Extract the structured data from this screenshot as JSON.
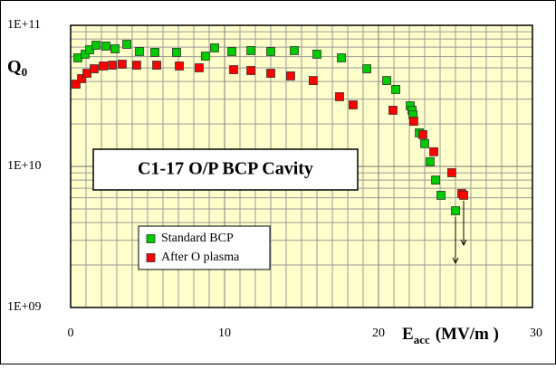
{
  "chart_data": {
    "type": "scatter",
    "title": "C1-17 O/P  BCP Cavity",
    "ylabel": "Q",
    "ylabel_sub": "0",
    "xlabel": "E",
    "xlabel_sub": "acc",
    "xlabel_unit": "(MV/m )",
    "log_y": true,
    "grid": true,
    "legend": "lower-left",
    "xlim": [
      0,
      30
    ],
    "xticks": [
      0,
      10,
      20,
      30
    ],
    "xminorticks": [
      1,
      2,
      3,
      4,
      5,
      6,
      7,
      8,
      9,
      11,
      12,
      13,
      14,
      15,
      16,
      17,
      18,
      19,
      21,
      22,
      23,
      24,
      25,
      26,
      27,
      28,
      29
    ],
    "ylim": [
      1000000000.0,
      100000000000.0
    ],
    "yticks": [
      {
        "value": 1000000000.0,
        "label": "1E+09"
      },
      {
        "value": 10000000000.0,
        "label": "1E+10"
      },
      {
        "value": 100000000000.0,
        "label": "1E+11"
      }
    ],
    "yminorticks": [
      2000000000.0,
      3000000000.0,
      4000000000.0,
      5000000000.0,
      6000000000.0,
      7000000000.0,
      8000000000.0,
      9000000000.0,
      20000000000.0,
      30000000000.0,
      40000000000.0,
      50000000000.0,
      60000000000.0,
      70000000000.0,
      80000000000.0,
      90000000000.0
    ],
    "series": [
      {
        "name": "Standard BCP",
        "color": "#00cc00",
        "x": [
          0.47,
          0.94,
          1.24,
          1.65,
          2.29,
          2.88,
          3.65,
          4.47,
          5.47,
          6.88,
          8.76,
          9.35,
          10.47,
          11.71,
          13.0,
          14.53,
          16.0,
          17.59,
          19.24,
          20.53,
          21.12,
          22.06,
          22.18,
          22.24,
          22.65,
          23.0,
          23.35,
          23.71,
          24.06,
          25.0
        ],
        "values": [
          58800000000.0,
          62400000000.0,
          67100000000.0,
          72300000000.0,
          71300000000.0,
          68100000000.0,
          73300000000.0,
          65200000000.0,
          64300000000.0,
          64300000000.0,
          60500000000.0,
          69200000000.0,
          65200000000.0,
          66200000000.0,
          65200000000.0,
          66200000000.0,
          62400000000.0,
          58800000000.0,
          49200000000.0,
          40600000000.0,
          35100000000.0,
          26900000000.0,
          25000000000.0,
          23200000000.0,
          17300000000.0,
          14500000000.0,
          10800000000.0,
          8000000000.0,
          6240000000.0,
          4850000000.0
        ]
      },
      {
        "name": "After O plasma",
        "color": "#ff0000",
        "x": [
          0.35,
          0.71,
          1.06,
          1.53,
          2.12,
          2.71,
          3.35,
          4.29,
          5.59,
          7.06,
          8.35,
          10.59,
          11.71,
          13.0,
          14.29,
          15.76,
          17.47,
          18.35,
          20.94,
          22.29,
          22.88,
          23.59,
          24.76,
          25.41,
          25.53
        ],
        "values": [
          38300000000.0,
          41900000000.0,
          45700000000.0,
          49200000000.0,
          51500000000.0,
          52200000000.0,
          53000000000.0,
          52200000000.0,
          52200000000.0,
          51500000000.0,
          50000000000.0,
          48500000000.0,
          47800000000.0,
          45700000000.0,
          43800000000.0,
          40600000000.0,
          31200000000.0,
          27300000000.0,
          25000000000.0,
          20900000000.0,
          16800000000.0,
          12700000000.0,
          9020000000.0,
          6420000000.0,
          6240000000.0
        ]
      }
    ]
  }
}
